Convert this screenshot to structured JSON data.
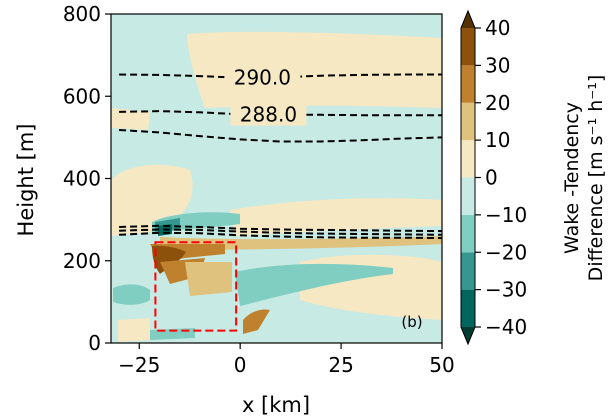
{
  "chart_data": {
    "type": "heatmap",
    "panel_label": "(b)",
    "xlabel": "x [km]",
    "ylabel": "Height [m]",
    "xlim": [
      -32,
      50
    ],
    "ylim": [
      0,
      800
    ],
    "xticks": [
      -25,
      0,
      25,
      50
    ],
    "yticks": [
      0,
      200,
      400,
      600,
      800
    ],
    "xtick_labels": [
      "−25",
      "0",
      "25",
      "50"
    ],
    "ytick_labels": [
      "0",
      "200",
      "400",
      "600",
      "800"
    ],
    "colorbar": {
      "label_line1": "Wake  -Tendency",
      "label_line2": "Difference [m s⁻¹ h⁻¹]",
      "ticks": [
        40,
        30,
        20,
        10,
        0,
        -10,
        -20,
        -30,
        -40
      ],
      "tick_labels": [
        "40",
        "30",
        "20",
        "10",
        "0",
        "−10",
        "−20",
        "−30",
        "−40"
      ],
      "levels": [
        -40,
        -30,
        -20,
        -10,
        0,
        10,
        20,
        30,
        40
      ],
      "colors": [
        "#01665e",
        "#35978f",
        "#80cdc1",
        "#c7eae5",
        "#f6e8c3",
        "#dfc27d",
        "#bf812d",
        "#8c510a"
      ],
      "extend": "both",
      "extend_colors": {
        "min": "#003c30",
        "max": "#543005"
      }
    },
    "background_value_color": "#c7eae5",
    "contours": [
      {
        "label": "290.0",
        "label_x": 5.5,
        "x": [
          -30,
          -20,
          -10,
          0,
          10,
          20,
          30,
          40,
          50
        ],
        "y": [
          653,
          652,
          649,
          645,
          646,
          650,
          652,
          653,
          653
        ]
      },
      {
        "label": "288.0",
        "label_x": 7,
        "x": [
          -30,
          -20,
          -10,
          0,
          10,
          20,
          30,
          40,
          50
        ],
        "y": [
          562,
          564,
          561,
          556,
          555,
          555,
          554,
          554,
          554
        ]
      },
      {
        "label": "",
        "x": [
          -30,
          -20,
          -10,
          0,
          10,
          20,
          30,
          40,
          50
        ],
        "y": [
          518,
          512,
          503,
          495,
          490,
          490,
          493,
          497,
          500
        ]
      },
      {
        "label": "",
        "x": [
          -30,
          -20,
          -10,
          0,
          10,
          20,
          30,
          40,
          50
        ],
        "y": [
          282,
          285,
          282,
          278,
          276,
          275,
          274,
          273,
          272
        ]
      },
      {
        "label": "",
        "x": [
          -30,
          -20,
          -10,
          0,
          10,
          20,
          30,
          40,
          50
        ],
        "y": [
          273,
          276,
          275,
          271,
          268,
          266,
          265,
          264,
          263
        ]
      },
      {
        "label": "",
        "x": [
          -30,
          -20,
          -10,
          0,
          10,
          20,
          30,
          40,
          50
        ],
        "y": [
          263,
          268,
          267,
          262,
          259,
          257,
          256,
          256,
          255
        ]
      }
    ],
    "region_box": {
      "x0": -21,
      "x1": -1,
      "y0": 30,
      "y1": 245,
      "color": "#ff0000"
    }
  }
}
